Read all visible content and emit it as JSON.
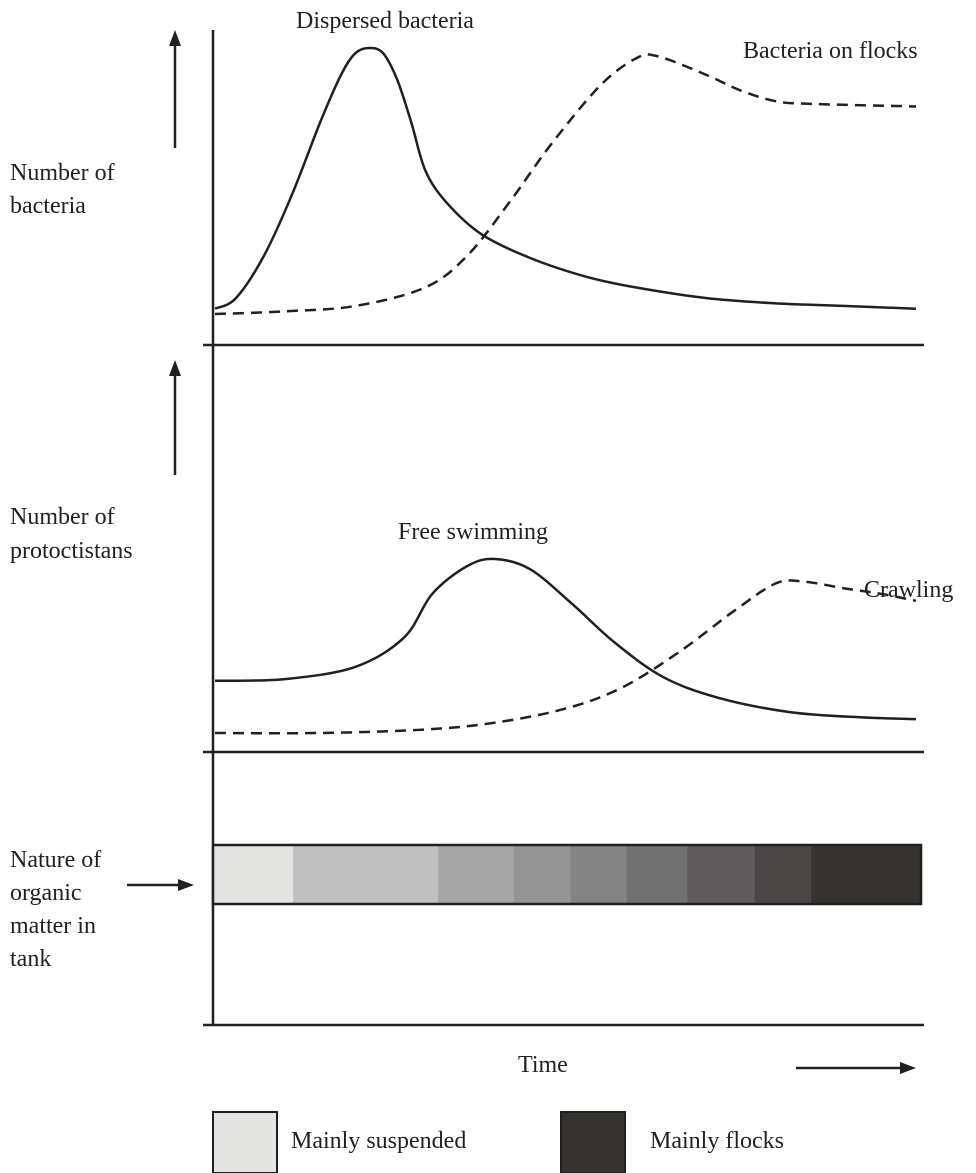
{
  "chart_data": [
    {
      "type": "line",
      "ylabel": "Number of bacteria",
      "ylabel_lines": [
        "Number of",
        "bacteria"
      ],
      "xlabel": "",
      "x_units": "relative time (0 = start, 1 = end)",
      "y_units": "relative number (0 = baseline, 1 = peak)",
      "series": [
        {
          "name": "Dispersed bacteria",
          "style": "solid",
          "points": [
            [
              0.0,
              0.02
            ],
            [
              0.03,
              0.06
            ],
            [
              0.07,
              0.22
            ],
            [
              0.11,
              0.45
            ],
            [
              0.15,
              0.72
            ],
            [
              0.18,
              0.9
            ],
            [
              0.2,
              0.98
            ],
            [
              0.22,
              1.0
            ],
            [
              0.24,
              0.98
            ],
            [
              0.26,
              0.88
            ],
            [
              0.28,
              0.72
            ],
            [
              0.3,
              0.54
            ],
            [
              0.33,
              0.42
            ],
            [
              0.38,
              0.3
            ],
            [
              0.45,
              0.21
            ],
            [
              0.53,
              0.14
            ],
            [
              0.6,
              0.1
            ],
            [
              0.7,
              0.06
            ],
            [
              0.8,
              0.04
            ],
            [
              0.9,
              0.03
            ],
            [
              1.0,
              0.02
            ]
          ]
        },
        {
          "name": "Bacteria on flocks",
          "style": "dashed",
          "points": [
            [
              0.0,
              0.0
            ],
            [
              0.1,
              0.01
            ],
            [
              0.2,
              0.03
            ],
            [
              0.3,
              0.1
            ],
            [
              0.36,
              0.22
            ],
            [
              0.42,
              0.42
            ],
            [
              0.48,
              0.64
            ],
            [
              0.55,
              0.86
            ],
            [
              0.6,
              0.96
            ],
            [
              0.63,
              0.97
            ],
            [
              0.7,
              0.9
            ],
            [
              0.75,
              0.84
            ],
            [
              0.8,
              0.8
            ],
            [
              0.85,
              0.79
            ],
            [
              1.0,
              0.78
            ]
          ]
        }
      ]
    },
    {
      "type": "line",
      "ylabel": "Number of protoctistans",
      "ylabel_lines": [
        "Number of",
        "protoctistans"
      ],
      "xlabel": "",
      "x_units": "relative time (0 = start, 1 = end)",
      "y_units": "relative number (0 = baseline, 1 = peak)",
      "series": [
        {
          "name": "Free swimming",
          "style": "solid",
          "points": [
            [
              0.0,
              0.3
            ],
            [
              0.1,
              0.31
            ],
            [
              0.2,
              0.38
            ],
            [
              0.27,
              0.55
            ],
            [
              0.31,
              0.8
            ],
            [
              0.36,
              0.96
            ],
            [
              0.4,
              1.0
            ],
            [
              0.45,
              0.94
            ],
            [
              0.51,
              0.74
            ],
            [
              0.57,
              0.52
            ],
            [
              0.64,
              0.32
            ],
            [
              0.72,
              0.2
            ],
            [
              0.82,
              0.12
            ],
            [
              0.92,
              0.09
            ],
            [
              1.0,
              0.08
            ]
          ]
        },
        {
          "name": "Crawling",
          "style": "dashed",
          "points": [
            [
              0.0,
              0.0
            ],
            [
              0.15,
              0.0
            ],
            [
              0.3,
              0.02
            ],
            [
              0.4,
              0.06
            ],
            [
              0.5,
              0.14
            ],
            [
              0.58,
              0.26
            ],
            [
              0.66,
              0.46
            ],
            [
              0.74,
              0.7
            ],
            [
              0.8,
              0.86
            ],
            [
              0.84,
              0.87
            ],
            [
              0.9,
              0.83
            ],
            [
              0.95,
              0.8
            ],
            [
              1.0,
              0.76
            ]
          ]
        }
      ]
    }
  ],
  "band": {
    "label": "Nature of organic matter in tank",
    "label_lines": [
      "Nature of",
      "organic",
      "matter in",
      "tank"
    ],
    "segments": [
      {
        "from": 0.0,
        "to": 0.113,
        "color": "#e3e3e2"
      },
      {
        "from": 0.113,
        "to": 0.318,
        "color": "#c0c0c0"
      },
      {
        "from": 0.318,
        "to": 0.425,
        "color": "#a6a6a6"
      },
      {
        "from": 0.425,
        "to": 0.505,
        "color": "#959595"
      },
      {
        "from": 0.505,
        "to": 0.584,
        "color": "#838383"
      },
      {
        "from": 0.584,
        "to": 0.67,
        "color": "#717171"
      },
      {
        "from": 0.67,
        "to": 0.765,
        "color": "#5e5c5c"
      },
      {
        "from": 0.765,
        "to": 0.845,
        "color": "#4a4747"
      },
      {
        "from": 0.845,
        "to": 1.0,
        "color": "#363230"
      }
    ]
  },
  "time_label": "Time",
  "legend": [
    {
      "label": "Mainly suspended",
      "color": "#e3e3e2"
    },
    {
      "label": "Mainly flocks",
      "color": "#363230"
    }
  ],
  "colors": {
    "ink": "#231f20"
  }
}
